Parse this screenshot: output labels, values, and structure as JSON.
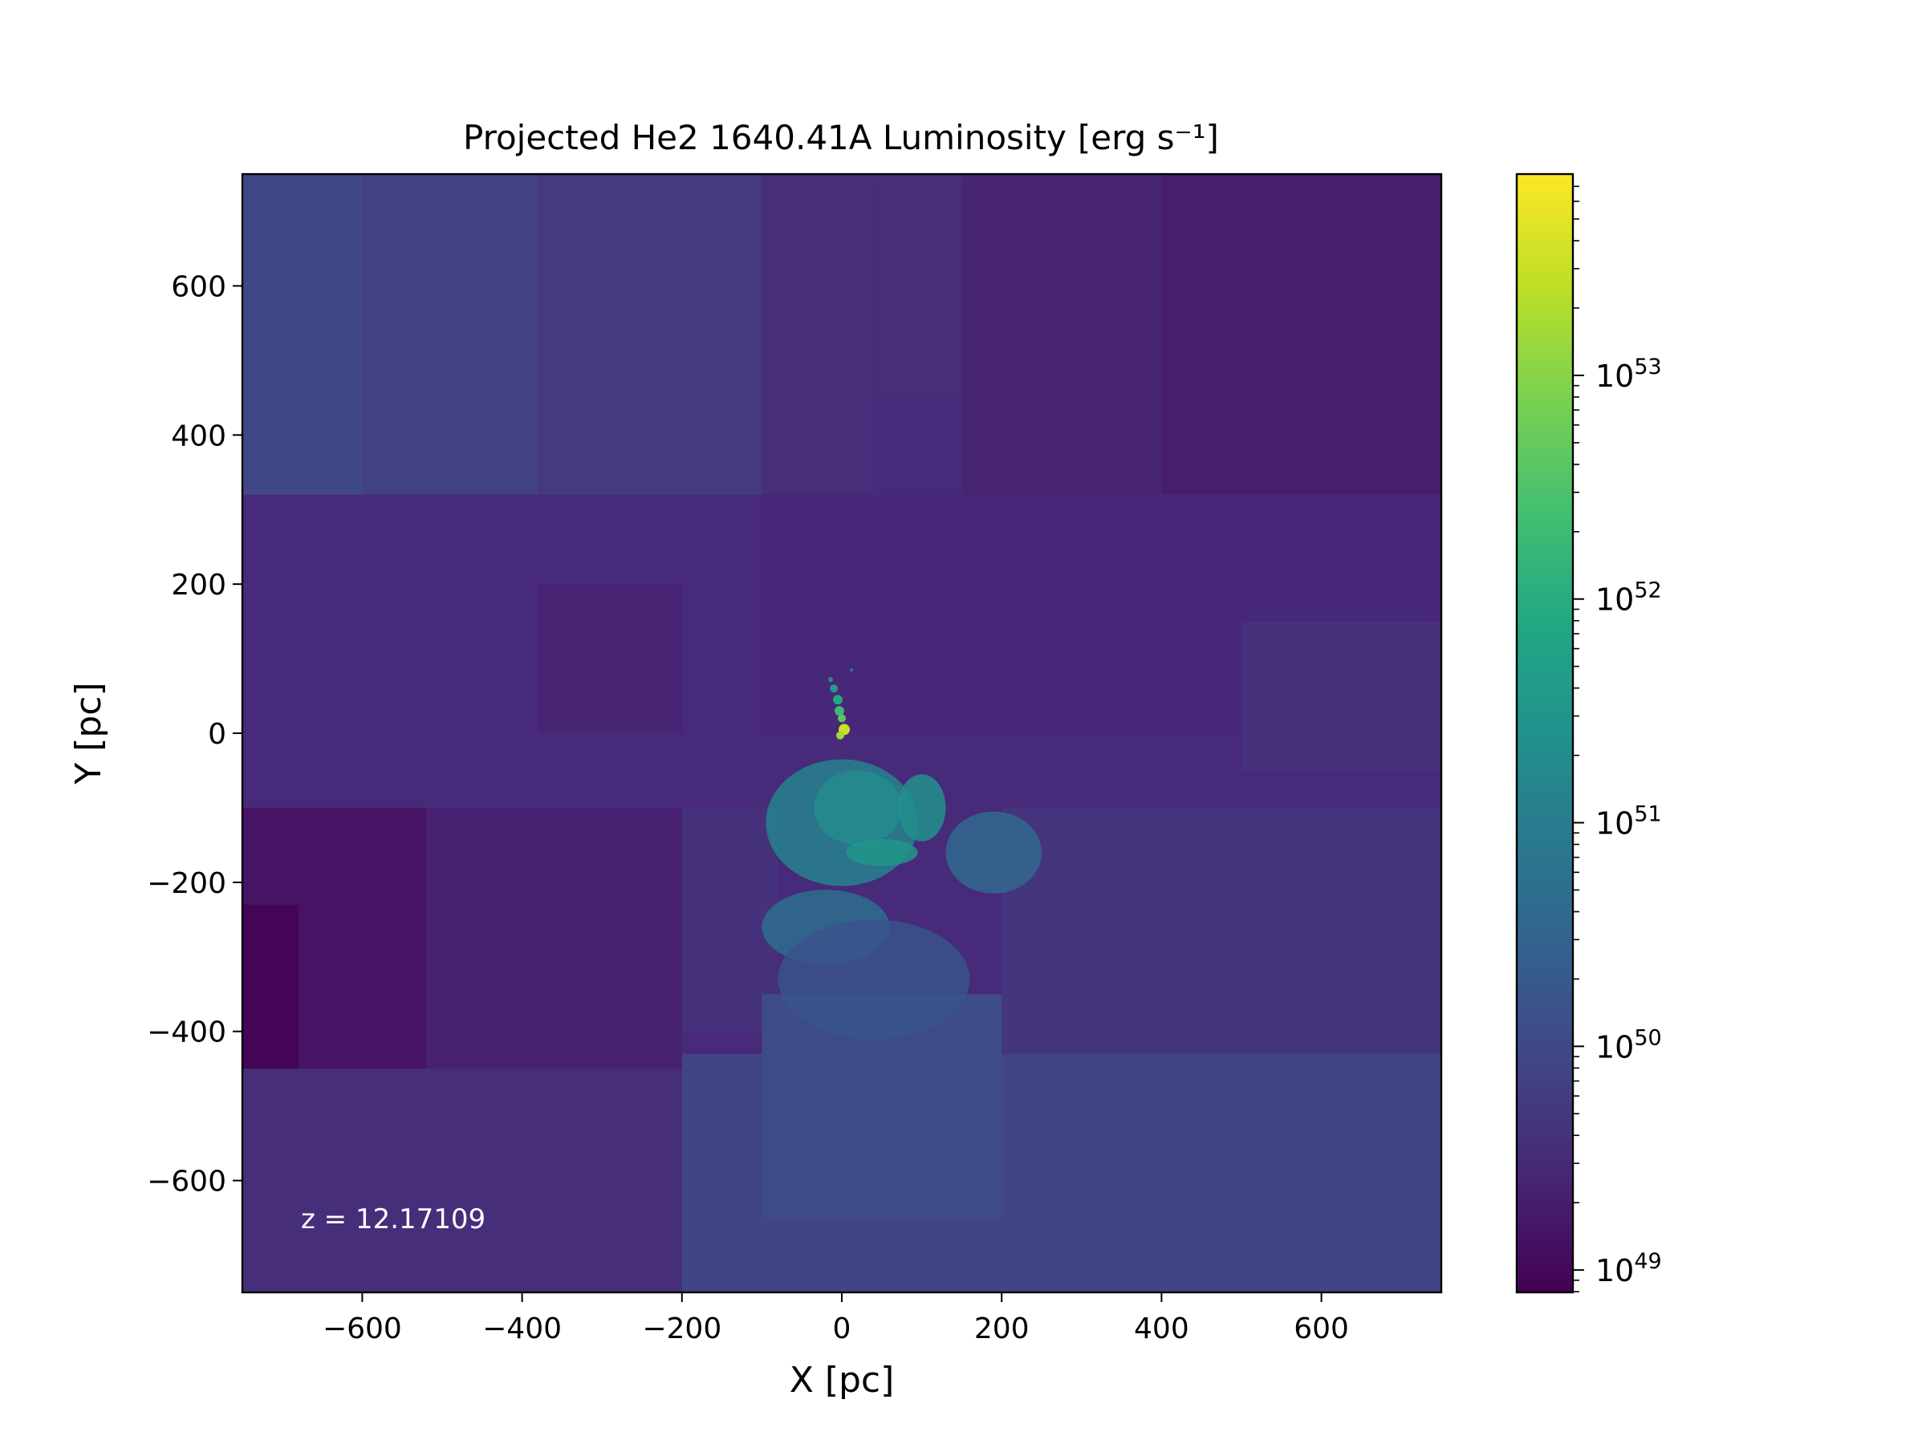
{
  "chart_data": {
    "type": "heatmap",
    "title": "Projected He2 1640.41A Luminosity",
    "title_unit": "[erg s⁻¹]",
    "xlabel": "X [pc]",
    "ylabel": "Y [pc]",
    "xlim": [
      -750,
      750
    ],
    "ylim": [
      -750,
      750
    ],
    "x_ticks": [
      -600,
      -400,
      -200,
      0,
      200,
      400,
      600
    ],
    "y_ticks": [
      -600,
      -400,
      -200,
      0,
      200,
      400,
      600
    ],
    "x_tick_labels": [
      "−600",
      "−400",
      "−200",
      "0",
      "200",
      "400",
      "600"
    ],
    "y_tick_labels": [
      "−600",
      "−400",
      "−200",
      "0",
      "200",
      "400",
      "600"
    ],
    "annotation": "z = 12.17109",
    "colorbar": {
      "scale": "log",
      "colormap": "viridis",
      "log10_range": [
        48.9,
        53.9
      ],
      "major_ticks_log10": [
        49,
        50,
        51,
        52,
        53
      ],
      "tick_labels": [
        {
          "base": "10",
          "exp": "49"
        },
        {
          "base": "10",
          "exp": "50"
        },
        {
          "base": "10",
          "exp": "51"
        },
        {
          "base": "10",
          "exp": "52"
        },
        {
          "base": "10",
          "exp": "53"
        }
      ]
    },
    "background_log10": 49.5,
    "regions_log10": [
      {
        "x0": -750,
        "x1": -600,
        "y0": 320,
        "y1": 750,
        "v": 49.95
      },
      {
        "x0": -600,
        "x1": -380,
        "y0": 320,
        "y1": 750,
        "v": 49.85
      },
      {
        "x0": -380,
        "x1": -100,
        "y0": 320,
        "y1": 750,
        "v": 49.75
      },
      {
        "x0": -100,
        "x1": 40,
        "y0": 320,
        "y1": 750,
        "v": 49.55
      },
      {
        "x0": 40,
        "x1": 150,
        "y0": 450,
        "y1": 750,
        "v": 49.55
      },
      {
        "x0": 150,
        "x1": 400,
        "y0": 320,
        "y1": 750,
        "v": 49.4
      },
      {
        "x0": 400,
        "x1": 750,
        "y0": 320,
        "y1": 750,
        "v": 49.3
      },
      {
        "x0": -750,
        "x1": -100,
        "y0": -100,
        "y1": 320,
        "v": 49.5
      },
      {
        "x0": -380,
        "x1": -200,
        "y0": 0,
        "y1": 200,
        "v": 49.4
      },
      {
        "x0": -100,
        "x1": 270,
        "y0": 0,
        "y1": 320,
        "v": 49.45
      },
      {
        "x0": 270,
        "x1": 750,
        "y0": 0,
        "y1": 320,
        "v": 49.45
      },
      {
        "x0": 500,
        "x1": 750,
        "y0": -50,
        "y1": 150,
        "v": 49.6
      },
      {
        "x0": -750,
        "x1": -520,
        "y0": -450,
        "y1": -100,
        "v": 49.15
      },
      {
        "x0": -750,
        "x1": -680,
        "y0": -450,
        "y1": -230,
        "v": 48.95
      },
      {
        "x0": -520,
        "x1": -200,
        "y0": -450,
        "y1": -100,
        "v": 49.35
      },
      {
        "x0": -200,
        "x1": -80,
        "y0": -400,
        "y1": -100,
        "v": 49.6
      },
      {
        "x0": 200,
        "x1": 750,
        "y0": -430,
        "y1": -100,
        "v": 49.65
      },
      {
        "x0": -750,
        "x1": -200,
        "y0": -750,
        "y1": -450,
        "v": 49.55
      },
      {
        "x0": -200,
        "x1": 750,
        "y0": -750,
        "y1": -430,
        "v": 49.9
      },
      {
        "x0": -100,
        "x1": 200,
        "y0": -650,
        "y1": -350,
        "v": 50.05
      }
    ],
    "blobs_log10": [
      {
        "x": 0,
        "y": -120,
        "rx": 95,
        "ry": 85,
        "v": 51.1
      },
      {
        "x": 20,
        "y": -100,
        "rx": 55,
        "ry": 50,
        "v": 51.3
      },
      {
        "x": 100,
        "y": -100,
        "rx": 30,
        "ry": 45,
        "v": 51.4
      },
      {
        "x": 50,
        "y": -160,
        "rx": 45,
        "ry": 18,
        "v": 51.5
      },
      {
        "x": 190,
        "y": -160,
        "rx": 60,
        "ry": 55,
        "v": 50.6
      },
      {
        "x": -20,
        "y": -260,
        "rx": 80,
        "ry": 50,
        "v": 50.7
      },
      {
        "x": 40,
        "y": -330,
        "rx": 120,
        "ry": 80,
        "v": 50.2
      }
    ],
    "clumps_log10": [
      {
        "x": -10,
        "y": 60,
        "r": 5,
        "v": 51.6
      },
      {
        "x": -5,
        "y": 45,
        "r": 6,
        "v": 51.9
      },
      {
        "x": -3,
        "y": 30,
        "r": 6,
        "v": 52.3
      },
      {
        "x": 0,
        "y": 20,
        "r": 5,
        "v": 52.6
      },
      {
        "x": 3,
        "y": 5,
        "r": 7,
        "v": 53.5
      },
      {
        "x": -2,
        "y": -3,
        "r": 5,
        "v": 53.2
      },
      {
        "x": -14,
        "y": 72,
        "r": 3,
        "v": 51.3
      },
      {
        "x": 12,
        "y": 85,
        "r": 2,
        "v": 51.0
      }
    ]
  }
}
